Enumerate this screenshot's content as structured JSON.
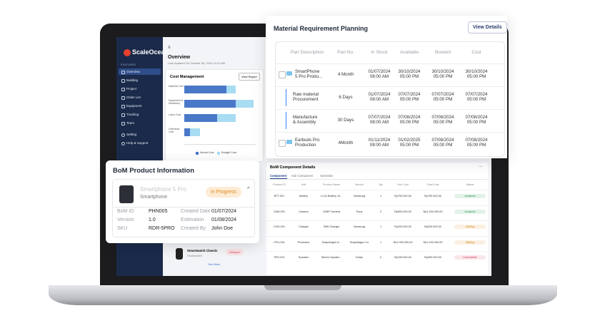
{
  "sidebar": {
    "logo": "ScaleOcean",
    "section": "FEATURES",
    "items": [
      "Overview",
      "Building",
      "Project",
      "Order List",
      "Equipment",
      "Tracking",
      "Team"
    ],
    "bottom_items": [
      "Setting",
      "Help & Support"
    ]
  },
  "overview": {
    "title": "Overview",
    "updated": "Last Updated On October 08, 2024 10:11 AM"
  },
  "cost_management": {
    "title": "Cost Management",
    "button": "View Report"
  },
  "chart_data": {
    "type": "bar",
    "orientation": "horizontal",
    "categories": [
      "Material Cost",
      "Equipment & Machinery",
      "Labor Cost",
      "Overhead Cost"
    ],
    "series": [
      {
        "name": "Actual Cost",
        "color": "#4a78c8",
        "values": [
          59,
          72,
          46,
          8
        ]
      },
      {
        "name": "Budget Cost",
        "color": "#a8dcf2",
        "values": [
          72,
          97,
          72,
          22
        ]
      }
    ],
    "xlim": [
      0,
      100
    ],
    "legend": "bottom"
  },
  "mrp": {
    "title": "Material Requirement Planning",
    "button": "View Details",
    "columns": [
      "Part Description",
      "Part No.",
      "In Stock",
      "Available",
      "Booked",
      "Cost"
    ],
    "rows": [
      [
        "SmartPhone\n5 Pro Produ...",
        "4 Month",
        "01/07/2024\n08:00 AM",
        "30/10/2024\n05:00 PM",
        "30/10/2024\n05:00 PM",
        "30/10/2024\n05:00 PM"
      ],
      [
        "Raw material\nProcurement",
        "6 Days",
        "01/07/2024\n08:00 AM",
        "07/07/2024\n05:00 PM",
        "07/07/2024\n05:00 PM",
        "07/07/2024\n05:00 PM"
      ],
      [
        "Manufacture\n& Assembly",
        "30 Days",
        "07/07/2024\n08:00 AM",
        "07/08/2024\n05:00 PM",
        "07/08/2024\n05:00 PM",
        "07/08/2024\n05:00 PM"
      ],
      [
        "Earbuds Pro\nProduction",
        "4Month",
        "01/11/2024\n08:00 AM",
        "01/02/2025\n05:00 PM",
        "07/08/2024\n05:00 PM",
        "07/08/2024\n05:00 PM"
      ]
    ]
  },
  "bom_info": {
    "title": "BoM Product Information",
    "product": "Smartphone 5 Pro",
    "category": "Smartphone",
    "status": "In Progress",
    "fields": [
      [
        "BoM ID",
        "PHN005",
        "Created Date",
        "01/07/2024"
      ],
      [
        "Version",
        "1.0",
        "Estimation",
        "01/08/2024"
      ],
      [
        "SKU",
        "RDR-5PRO",
        "Created By",
        "John Doe"
      ]
    ]
  },
  "other_product": {
    "name": "Smartwatch Classic",
    "category": "Smartwatch",
    "status": "Delayed",
    "link": "See More"
  },
  "bom_components": {
    "title": "BoM Component Details",
    "menu": "...",
    "tabs": [
      "Component",
      "Sub Component",
      "Operation"
    ],
    "columns": [
      "Product ID",
      "Unit",
      "Product Name",
      "Vendor",
      "Qty",
      "Unit Cost",
      "Total Cost",
      "Status"
    ],
    "rows": [
      [
        "BTT-001",
        "Battery",
        "Li-On Battery 10...",
        "Samsung",
        "1",
        "Rp750.000,00",
        "Rp750.000,00",
        "Available"
      ],
      [
        "CAM-001",
        "Camera",
        "12MP Camera",
        "Sony",
        "2",
        "Rp500.000,00",
        "Rp1.000.000,00",
        "Available"
      ],
      [
        "CHG-001",
        "Charger",
        "30W Charger",
        "Samsung",
        "1",
        "Rp200.000,00",
        "Rp200.000,00",
        "Waiting"
      ],
      [
        "CPU-001",
        "Processor",
        "Snapdragon 8...",
        "Snapdragon Co",
        "1",
        "Rp1.000.000,00",
        "Rp1.000.000,00",
        "Waiting"
      ],
      [
        "SPK-001",
        "Speaker",
        "Stereo Speake...",
        "Dolby",
        "2",
        "Rp150.000,00",
        "Rp300.000,00",
        "Unavailable"
      ]
    ],
    "status_colors": {
      "Available": "#2e9e5b",
      "Waiting": "#d98a1c",
      "Unavailable": "#d6455d"
    }
  }
}
